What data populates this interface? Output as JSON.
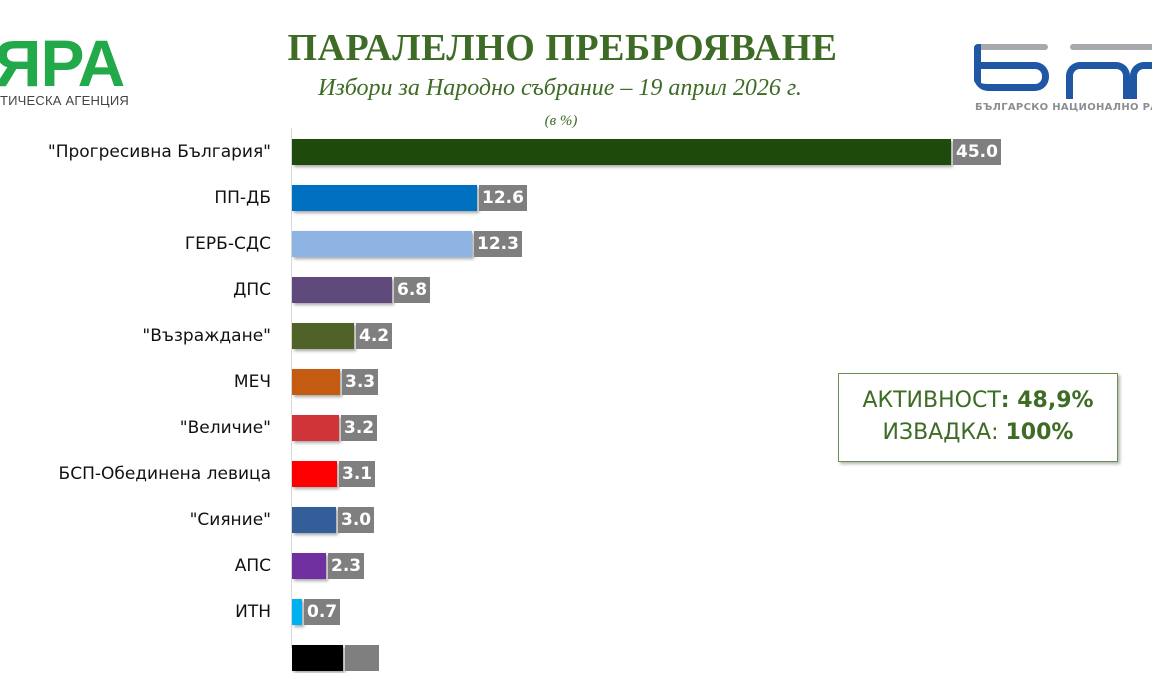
{
  "header": {
    "agency_logo": {
      "mark": "ЯРА",
      "subtitle": "ТИЧЕСКА АГЕНЦИЯ",
      "color": "#22a94a"
    },
    "title": "ПАРАЛЕЛНО ПРЕБРОЯВАНЕ",
    "subtitle": "Избори за Народно събрание – 19 април 2026 г.",
    "unit": "(в %)",
    "broadcaster_logo": {
      "tagline": "БЪЛГАРСКО НАЦИОНАЛНО РАД",
      "color": "#1f57a4"
    }
  },
  "info_box": {
    "turnout_label": "АКТИВНОСТ",
    "turnout_value": ": 48,9%",
    "sample_label": "ИЗВАДКА: ",
    "sample_value": "100%"
  },
  "chart_data": {
    "type": "bar",
    "orientation": "horizontal",
    "title": "ПАРАЛЕЛНО ПРЕБРОЯВАНЕ",
    "subtitle": "Избори за Народно събрание – 19 април 2026 г.",
    "unit": "(в %)",
    "xlabel": "",
    "ylabel": "",
    "grid": false,
    "data_labels": true,
    "categories": [
      "\"Прогресивна България\"",
      "ПП-ДБ",
      "ГЕРБ-СДС",
      "ДПС",
      "\"Възраждане\"",
      "МЕЧ",
      "\"Величие\"",
      "БСП-Обединена левица",
      "\"Сияние\"",
      "АПС",
      "ИТН",
      ""
    ],
    "values": [
      45.0,
      12.6,
      12.3,
      6.8,
      4.2,
      3.3,
      3.2,
      3.1,
      3.0,
      2.3,
      0.7,
      null
    ],
    "labels": [
      "45.0",
      "12.6",
      "12.3",
      "6.8",
      "4.2",
      "3.3",
      "3.2",
      "3.1",
      "3.0",
      "2.3",
      "0.7",
      ""
    ],
    "colors": [
      "#1e4a0b",
      "#0070c0",
      "#8eb4e3",
      "#604a7b",
      "#4f6228",
      "#c55a11",
      "#d13438",
      "#ff0000",
      "#335e99",
      "#7030a0",
      "#00b0f0",
      "#000000"
    ],
    "annotations": [
      "АКТИВНОСТ: 48,9%",
      "ИЗВАДКА: 100%"
    ],
    "partial_bottom_row": {
      "visible": "cut off",
      "approx_value": 3.5,
      "color": "#000000"
    }
  }
}
